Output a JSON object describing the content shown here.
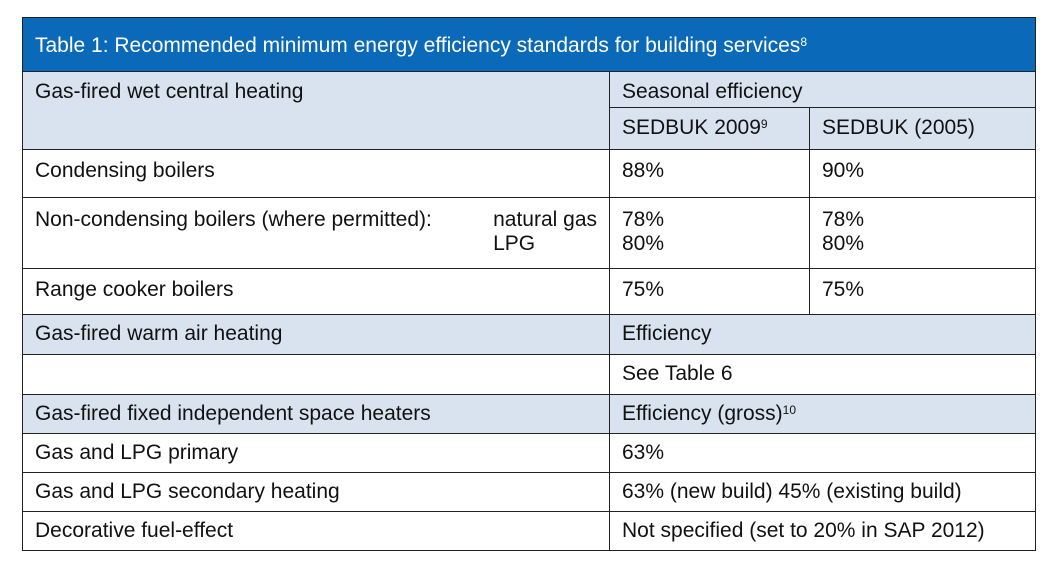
{
  "table": {
    "title": "Table 1: Recommended minimum energy efficiency standards for building services",
    "title_sup": "8",
    "wet": {
      "heading": "Gas-fired wet central heating",
      "seasonal_header": "Seasonal efficiency",
      "col1": "SEDBUK 2009",
      "col1_sup": "9",
      "col2": "SEDBUK (2005)",
      "rows": {
        "condensing": {
          "label": "Condensing boilers",
          "v1": "88%",
          "v2": "90%"
        },
        "noncondensing": {
          "label": "Non-condensing boilers (where permitted):",
          "fuel1": "natural gas",
          "fuel2": "LPG",
          "v1a": "78%",
          "v1b": "80%",
          "v2a": "78%",
          "v2b": "80%"
        },
        "range": {
          "label": "Range cooker boilers",
          "v1": "75%",
          "v2": "75%"
        }
      }
    },
    "warm_air": {
      "heading": "Gas-fired warm air heating",
      "header": "Efficiency",
      "value": "See Table 6"
    },
    "space": {
      "heading": "Gas-fired fixed independent space heaters",
      "header": "Efficiency (gross)",
      "header_sup": "10",
      "rows": {
        "primary": {
          "label": "Gas and LPG primary",
          "value": "63%"
        },
        "secondary": {
          "label": "Gas and LPG secondary heating",
          "value": "63% (new build) 45% (existing build)"
        },
        "decorative": {
          "label": "Decorative fuel-effect",
          "value": "Not specified (set to 20% in SAP 2012)"
        }
      }
    },
    "colors": {
      "title_bg": "#0a6ab9",
      "band_bg": "#d9e3ef",
      "title_text": "#ffffff"
    }
  }
}
